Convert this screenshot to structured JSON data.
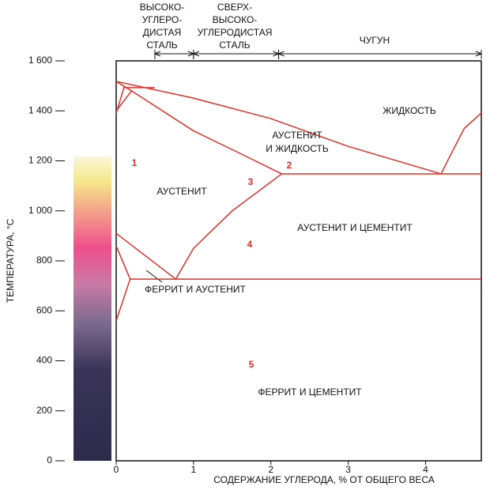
{
  "chart_data": {
    "type": "phase",
    "x_label": "СОДЕРЖАНИЕ УГЛЕРОДА, % ОТ ОБЩЕГО ВЕСА",
    "y_label": "ТЕМПЕРАТУРА, °С",
    "xlim": [
      0,
      4.72
    ],
    "ylim": [
      0,
      1600
    ],
    "xticks": [
      0,
      1,
      2,
      3,
      4
    ],
    "yticks": [
      0,
      200,
      400,
      600,
      800,
      {
        "value": 1000,
        "label": "1 000"
      },
      {
        "value": 1200,
        "label": "1 200"
      },
      {
        "value": 1400,
        "label": "1 400"
      },
      {
        "value": 1600,
        "label": "1 600"
      }
    ],
    "color": "#e0302a",
    "lines": [
      {
        "x": [
          0,
          1,
          2,
          3,
          4.2
        ],
        "values": [
          1518,
          1451,
          1369,
          1258,
          1148
        ]
      },
      {
        "x": [
          4.2,
          4.3,
          4.5,
          4.72
        ],
        "values": [
          1148,
          1210,
          1330,
          1391
        ]
      },
      {
        "x": [
          2.14,
          4.72
        ],
        "values": [
          1148,
          1148
        ]
      },
      {
        "x": [
          0.2,
          1,
          1.6,
          2.14
        ],
        "values": [
          1480,
          1320,
          1230,
          1148
        ]
      },
      {
        "x": [
          0,
          0.1,
          0.5
        ],
        "values": [
          1390,
          1493,
          1493
        ]
      },
      {
        "x": [
          0,
          0.2,
          0.2,
          0
        ],
        "values": [
          1518,
          1480,
          1480,
          1400
        ]
      },
      {
        "x": [
          0,
          0.77
        ],
        "values": [
          910,
          727
        ]
      },
      {
        "x": [
          0.77,
          1,
          1.5,
          2.14
        ],
        "values": [
          727,
          850,
          1000,
          1148
        ]
      },
      {
        "x": [
          0.18,
          4.72
        ],
        "values": [
          727,
          727
        ]
      },
      {
        "x": [
          0,
          0.18,
          0
        ],
        "values": [
          860,
          727,
          560
        ]
      }
    ],
    "ranges": [
      {
        "label": [
          "ВЫСОКО-",
          "УГЛЕРО-",
          "ДИСТАЯ",
          "СТАЛЬ"
        ],
        "from": 0.5,
        "to": 1
      },
      {
        "label": [
          "СВЕРХ-",
          "ВЫСОКО-",
          "УГЛЕРОДИСТАЯ",
          "СТАЛЬ"
        ],
        "from": 1,
        "to": 2.1
      },
      {
        "label": [
          "ЧУГУН"
        ],
        "from": 2.1,
        "to": 4.72
      }
    ],
    "annotations": [
      [
        "ЖИДКОСТЬ"
      ],
      [
        "АУСТЕНИТ",
        "И ЖИДКОСТЬ"
      ],
      [
        "АУСТЕНИТ"
      ],
      [
        "АУСТЕНИТ И ЦЕМЕНТИТ"
      ],
      [
        "ФЕРРИТ И АУСТЕНИТ"
      ],
      [
        "ФЕРРИТ И ЦЕМЕНТИТ"
      ],
      [
        "1"
      ],
      [
        "2"
      ],
      [
        "3"
      ],
      [
        "4"
      ],
      [
        "5"
      ]
    ]
  }
}
